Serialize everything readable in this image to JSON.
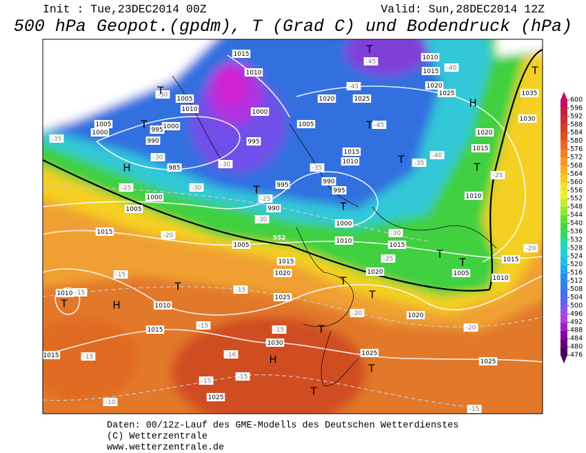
{
  "header": {
    "init": "Init : Tue,23DEC2014 00Z",
    "valid": "Valid: Sun,28DEC2014 12Z",
    "title": "500 hPa Geopot.(gpdm), T (Grad C) und Bodendruck (hPa)"
  },
  "map": {
    "isobar_labels": [
      "1015",
      "1010",
      "1005",
      "1010",
      "1000",
      "995",
      "990",
      "1005",
      "1000",
      "985",
      "1000",
      "995",
      "1005",
      "1020",
      "1025",
      "1010",
      "1015",
      "1020",
      "1025",
      "1035",
      "1030",
      "1020",
      "1015",
      "1015",
      "1010",
      "990",
      "995",
      "995",
      "990",
      "1000",
      "1005",
      "1015",
      "1005",
      "1000",
      "1010",
      "1010",
      "1015",
      "1020",
      "1015",
      "1020",
      "1025",
      "1010",
      "1015",
      "1015",
      "1030",
      "1025",
      "1025",
      "1005",
      "1010",
      "1015",
      "1020",
      "1010",
      "1025"
    ],
    "temperature_labels": [
      "-45",
      "-40",
      "-45",
      "-45",
      "-40",
      "-35",
      "-35",
      "-30",
      "-30",
      "-30",
      "-25",
      "-25",
      "-30",
      "-20",
      "-30",
      "-25",
      "-20",
      "-20",
      "-25",
      "-15",
      "-15",
      "-15",
      "-15",
      "-15",
      "-16",
      "-15",
      "-15",
      "-15",
      "-10",
      "-15",
      "-20",
      "-35",
      "-30"
    ],
    "pressure_centers": [
      "T",
      "H",
      "T",
      "H",
      "T",
      "T",
      "T",
      "H",
      "T",
      "T",
      "T",
      "T",
      "T",
      "T",
      "H",
      "T",
      "T",
      "T",
      "T",
      "T",
      "T",
      "T"
    ],
    "contour_label": "552"
  },
  "colorbar": {
    "levels": [
      476,
      480,
      484,
      488,
      492,
      496,
      500,
      504,
      508,
      512,
      516,
      520,
      524,
      528,
      532,
      536,
      540,
      544,
      548,
      552,
      556,
      560,
      564,
      568,
      572,
      576,
      580,
      584,
      588,
      592,
      596,
      600
    ],
    "colors": [
      "#4b0060",
      "#6a0080",
      "#8a00a8",
      "#a020c8",
      "#b040e0",
      "#9050f0",
      "#6060f0",
      "#4070f0",
      "#3080f0",
      "#2090f0",
      "#20a8f0",
      "#20c0e8",
      "#20d0d0",
      "#20d8a8",
      "#30d870",
      "#40d840",
      "#60e030",
      "#90e830",
      "#c0f030",
      "#f0f020",
      "#f8e020",
      "#f8c820",
      "#f8b020",
      "#f89820",
      "#f08020",
      "#e86820",
      "#e05020",
      "#d84020",
      "#d03030",
      "#c82040",
      "#c01060"
    ]
  },
  "footer": {
    "lines": [
      "Daten: 00/12z-Lauf des GME-Modells des Deutschen Wetterdienstes",
      "(C) Wetterzentrale",
      "www.wetterzentrale.de"
    ]
  }
}
